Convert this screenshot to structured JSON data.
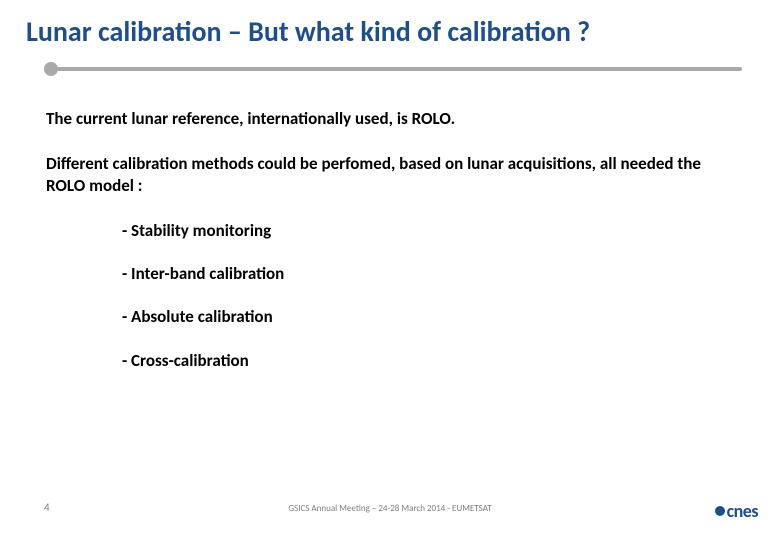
{
  "title": "Lunar calibration – But what kind of calibration ?",
  "colors": {
    "title": "#1f4e8c",
    "divider": "#a9a9a9",
    "body_text": "#000000",
    "footer_text": "#808080",
    "background": "#ffffff",
    "logo": "#1f4e8c"
  },
  "typography": {
    "title_fontsize": 28,
    "body_fontsize": 17,
    "footer_fontsize": 9,
    "pagenum_fontsize": 11,
    "font_family": "Calibri"
  },
  "body": {
    "para1": "The current lunar reference, internationally used, is ROLO.",
    "para2": "Different calibration methods could be perfomed, based on lunar acquisitions, all needed the ROLO model :",
    "items": [
      "- Stability monitoring",
      "- Inter-band calibration",
      "- Absolute calibration",
      "- Cross-calibration"
    ]
  },
  "footer": {
    "page_number": "4",
    "text": "GSICS Annual Meeting – 24-28 March 2014 - EUMETSAT",
    "logo_text": "cnes"
  }
}
